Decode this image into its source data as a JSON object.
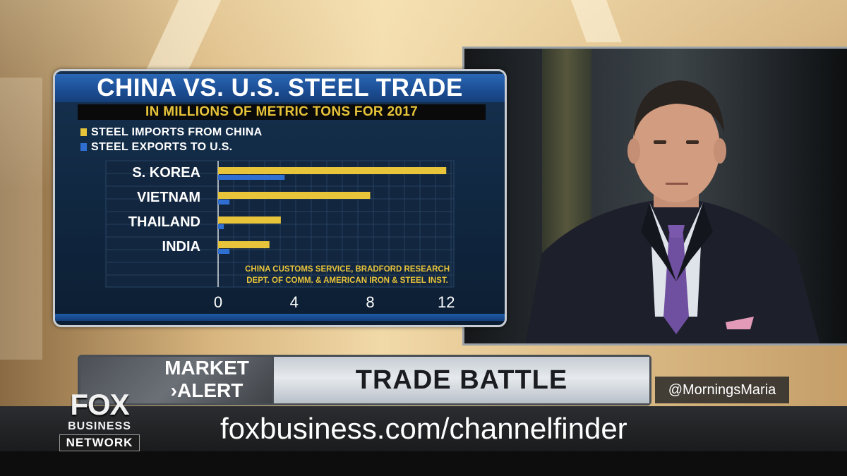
{
  "graphic": {
    "title": "CHINA VS. U.S. STEEL TRADE",
    "subtitle": "IN MILLIONS OF METRIC TONS FOR 2017",
    "source_line1": "CHINA CUSTOMS SERVICE, BRADFORD RESEARCH",
    "source_line2": "DEPT. OF COMM. & AMERICAN IRON & STEEL INST."
  },
  "chart_data": {
    "type": "bar",
    "orientation": "horizontal",
    "title": "CHINA VS. U.S. STEEL TRADE",
    "subtitle": "IN MILLIONS OF METRIC TONS FOR 2017",
    "categories": [
      "S. KOREA",
      "VIETNAM",
      "THAILAND",
      "INDIA"
    ],
    "series": [
      {
        "name": "STEEL IMPORTS FROM CHINA",
        "color": "#e8c43a",
        "values": [
          12,
          8,
          3.3,
          2.7
        ]
      },
      {
        "name": "STEEL EXPORTS TO U.S.",
        "color": "#2f6fd1",
        "values": [
          3.5,
          0.6,
          0.3,
          0.6
        ]
      }
    ],
    "xticks": [
      "0",
      "4",
      "8",
      "12"
    ],
    "xlim": [
      0,
      12.4
    ],
    "grid": true,
    "legend_position": "top-left"
  },
  "lower_third": {
    "market_label": "MARKET",
    "alert_label": "ALERT",
    "headline": "TRADE BATTLE",
    "handle": "@MorningsMaria",
    "crawl": "foxbusiness.com/channelfinder"
  },
  "logo": {
    "fox": "FOX",
    "business": "BUSINESS",
    "network": "NETWORK"
  }
}
